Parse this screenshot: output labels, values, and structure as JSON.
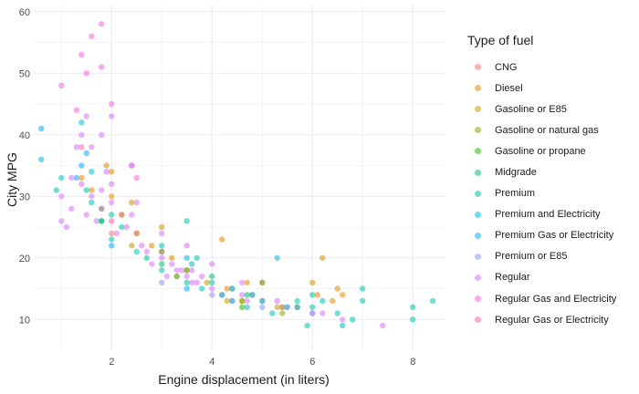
{
  "chart_data": {
    "type": "scatter",
    "xlabel": "Engine displacement (in liters)",
    "ylabel": "City MPG",
    "xlim": [
      0.45,
      8.65
    ],
    "ylim": [
      5,
      61
    ],
    "xticks": [
      2,
      4,
      6,
      8
    ],
    "yticks": [
      10,
      20,
      30,
      40,
      50,
      60
    ],
    "grid": true,
    "legend": {
      "title": "Type of fuel",
      "placement": "right",
      "entries": [
        {
          "name": "CNG",
          "color": "#F8766D"
        },
        {
          "name": "Diesel",
          "color": "#E18A00"
        },
        {
          "name": "Gasoline or E85",
          "color": "#BE9C00"
        },
        {
          "name": "Gasoline or natural gas",
          "color": "#8CAB00"
        },
        {
          "name": "Gasoline or propane",
          "color": "#24B700"
        },
        {
          "name": "Midgrade",
          "color": "#00BE70"
        },
        {
          "name": "Premium",
          "color": "#00C1AB"
        },
        {
          "name": "Premium and Electricity",
          "color": "#00BBDA"
        },
        {
          "name": "Premium Gas or Electricity",
          "color": "#00ACFC"
        },
        {
          "name": "Premium or E85",
          "color": "#8B93FF"
        },
        {
          "name": "Regular",
          "color": "#D575FE"
        },
        {
          "name": "Regular Gas and Electricity",
          "color": "#F962DD"
        },
        {
          "name": "Regular Gas or Electricity",
          "color": "#FF65AC"
        }
      ]
    },
    "series": [
      {
        "name": "Premium Gas or Electricity",
        "color": "#00ACFC",
        "points": [
          [
            0.6,
            41
          ],
          [
            1.4,
            35
          ],
          [
            1.5,
            37
          ],
          [
            2.0,
            22
          ],
          [
            3.0,
            21
          ],
          [
            3.5,
            15
          ],
          [
            1.3,
            33
          ]
        ]
      },
      {
        "name": "Premium and Electricity",
        "color": "#00BBDA",
        "points": [
          [
            0.6,
            36
          ],
          [
            1.4,
            42
          ],
          [
            1.6,
            34
          ],
          [
            3.5,
            20
          ],
          [
            5.3,
            20
          ],
          [
            1.8,
            28
          ]
        ]
      },
      {
        "name": "Regular Gas and Electricity",
        "color": "#F962DD",
        "points": [
          [
            1.0,
            48
          ],
          [
            1.4,
            53
          ],
          [
            1.5,
            50
          ],
          [
            1.8,
            58
          ],
          [
            1.6,
            56
          ],
          [
            2.0,
            45
          ],
          [
            2.4,
            35
          ],
          [
            1.3,
            44
          ],
          [
            1.8,
            51
          ],
          [
            2.5,
            33
          ]
        ]
      },
      {
        "name": "Regular",
        "color": "#D575FE",
        "points": [
          [
            1.0,
            30
          ],
          [
            1.2,
            33
          ],
          [
            1.3,
            38
          ],
          [
            1.4,
            32
          ],
          [
            1.5,
            43
          ],
          [
            1.6,
            30
          ],
          [
            1.8,
            40
          ],
          [
            1.9,
            34
          ],
          [
            2.0,
            29
          ],
          [
            2.0,
            43
          ],
          [
            2.2,
            27
          ],
          [
            2.4,
            35
          ],
          [
            2.5,
            24
          ],
          [
            2.6,
            22
          ],
          [
            2.7,
            21
          ],
          [
            3.0,
            20
          ],
          [
            3.0,
            24
          ],
          [
            3.2,
            19
          ],
          [
            3.3,
            18
          ],
          [
            3.5,
            17
          ],
          [
            3.5,
            22
          ],
          [
            3.6,
            18
          ],
          [
            3.7,
            16
          ],
          [
            3.8,
            17
          ],
          [
            4.0,
            15
          ],
          [
            4.0,
            19
          ],
          [
            4.2,
            14
          ],
          [
            4.4,
            15
          ],
          [
            4.6,
            14
          ],
          [
            4.7,
            13
          ],
          [
            4.8,
            14
          ],
          [
            5.0,
            13
          ],
          [
            5.3,
            13
          ],
          [
            5.4,
            12
          ],
          [
            5.7,
            12
          ],
          [
            6.0,
            11
          ],
          [
            6.2,
            11
          ],
          [
            6.6,
            10
          ],
          [
            7.4,
            9
          ],
          [
            1.6,
            38
          ],
          [
            1.8,
            31
          ],
          [
            2.0,
            32
          ],
          [
            2.4,
            27
          ],
          [
            3.6,
            16
          ],
          [
            4.6,
            16
          ],
          [
            1.1,
            25
          ],
          [
            1.2,
            28
          ],
          [
            1.5,
            27
          ],
          [
            1.7,
            26
          ],
          [
            2.1,
            24
          ],
          [
            2.3,
            25
          ],
          [
            2.8,
            19
          ],
          [
            3.1,
            17
          ],
          [
            3.4,
            18
          ],
          [
            2.5,
            29
          ],
          [
            1.0,
            26
          ],
          [
            1.4,
            40
          ]
        ]
      },
      {
        "name": "Premium",
        "color": "#00C1AB",
        "points": [
          [
            0.9,
            31
          ],
          [
            1.0,
            33
          ],
          [
            1.5,
            31
          ],
          [
            1.8,
            26
          ],
          [
            2.0,
            23
          ],
          [
            2.0,
            27
          ],
          [
            2.5,
            21
          ],
          [
            2.7,
            20
          ],
          [
            3.0,
            18
          ],
          [
            3.0,
            22
          ],
          [
            3.3,
            17
          ],
          [
            3.5,
            16
          ],
          [
            3.6,
            19
          ],
          [
            3.7,
            20
          ],
          [
            3.8,
            15
          ],
          [
            4.0,
            16
          ],
          [
            4.2,
            14
          ],
          [
            4.4,
            13
          ],
          [
            4.4,
            15
          ],
          [
            4.7,
            12
          ],
          [
            4.8,
            14
          ],
          [
            5.0,
            13
          ],
          [
            5.0,
            16
          ],
          [
            5.2,
            11
          ],
          [
            5.5,
            12
          ],
          [
            5.7,
            13
          ],
          [
            6.0,
            12
          ],
          [
            6.0,
            14
          ],
          [
            6.2,
            13
          ],
          [
            6.5,
            11
          ],
          [
            6.8,
            10
          ],
          [
            7.0,
            13
          ],
          [
            8.0,
            12
          ],
          [
            8.4,
            13
          ],
          [
            8.0,
            10
          ],
          [
            5.9,
            9
          ],
          [
            6.6,
            9
          ],
          [
            7.0,
            15
          ],
          [
            3.5,
            26
          ],
          [
            1.6,
            29
          ],
          [
            2.2,
            25
          ]
        ]
      },
      {
        "name": "Midgrade",
        "color": "#00BE70",
        "points": [
          [
            1.8,
            26
          ],
          [
            3.0,
            19
          ],
          [
            3.5,
            18
          ],
          [
            4.7,
            14
          ],
          [
            5.7,
            12
          ],
          [
            4.0,
            17
          ]
        ]
      },
      {
        "name": "Diesel",
        "color": "#E18A00",
        "points": [
          [
            1.4,
            33
          ],
          [
            1.6,
            31
          ],
          [
            1.9,
            35
          ],
          [
            2.0,
            30
          ],
          [
            2.0,
            34
          ],
          [
            2.2,
            27
          ],
          [
            2.5,
            24
          ],
          [
            2.8,
            22
          ],
          [
            3.0,
            21
          ],
          [
            3.0,
            25
          ],
          [
            3.2,
            20
          ],
          [
            4.2,
            23
          ],
          [
            4.3,
            15
          ],
          [
            4.7,
            16
          ],
          [
            5.0,
            16
          ],
          [
            6.0,
            16
          ],
          [
            6.2,
            20
          ],
          [
            6.4,
            13
          ],
          [
            6.5,
            15
          ],
          [
            6.6,
            14
          ],
          [
            2.4,
            29
          ],
          [
            6.1,
            14
          ]
        ]
      },
      {
        "name": "Gasoline or E85",
        "color": "#BE9C00",
        "points": [
          [
            2.4,
            22
          ],
          [
            3.3,
            17
          ],
          [
            3.5,
            18
          ],
          [
            3.9,
            16
          ],
          [
            4.3,
            13
          ],
          [
            4.6,
            13
          ],
          [
            5.3,
            12
          ],
          [
            5.4,
            12
          ]
        ]
      },
      {
        "name": "Premium or E85",
        "color": "#8B93FF",
        "points": [
          [
            3.0,
            16
          ],
          [
            4.0,
            14
          ],
          [
            4.4,
            13
          ],
          [
            5.0,
            12
          ],
          [
            5.5,
            12
          ],
          [
            6.0,
            11
          ]
        ]
      },
      {
        "name": "CNG",
        "color": "#F8766D",
        "points": [
          [
            1.8,
            28
          ],
          [
            2.0,
            24
          ]
        ]
      },
      {
        "name": "Regular Gas or Electricity",
        "color": "#FF65AC",
        "points": [
          [
            1.4,
            38
          ],
          [
            2.0,
            26
          ]
        ]
      },
      {
        "name": "Gasoline or propane",
        "color": "#24B700",
        "points": [
          [
            4.6,
            12
          ]
        ]
      },
      {
        "name": "Gasoline or natural gas",
        "color": "#8CAB00",
        "points": [
          [
            4.6,
            13
          ],
          [
            5.4,
            11
          ]
        ]
      }
    ]
  }
}
